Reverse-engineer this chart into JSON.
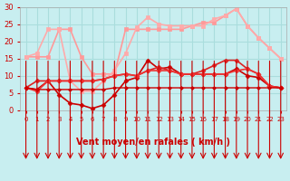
{
  "title": "",
  "xlabel": "Vent moyen/en rafales ( km/h )",
  "ylabel": "",
  "xlim": [
    0,
    23
  ],
  "ylim": [
    0,
    30
  ],
  "yticks": [
    0,
    5,
    10,
    15,
    20,
    25,
    30
  ],
  "xticks": [
    0,
    1,
    2,
    3,
    4,
    5,
    6,
    7,
    8,
    9,
    10,
    11,
    12,
    13,
    14,
    15,
    16,
    17,
    18,
    19,
    20,
    21,
    22,
    23
  ],
  "bg_color": "#c8eef0",
  "grid_color": "#aadddd",
  "series": [
    {
      "name": "light_upper1",
      "x": [
        0,
        1,
        2,
        3,
        4,
        5,
        6,
        7,
        8,
        9,
        10,
        11,
        12,
        13,
        14,
        15,
        16,
        17,
        18,
        19,
        20,
        21,
        22,
        23
      ],
      "y": [
        15.5,
        15.5,
        15.5,
        23.5,
        23.5,
        15.5,
        10.5,
        10.5,
        10.5,
        23.5,
        23.5,
        23.5,
        23.5,
        23.5,
        23.5,
        24.5,
        25.5,
        25.5,
        27.5,
        29.5,
        24.5,
        21.0,
        18.0,
        15.0
      ],
      "color": "#ff9999",
      "linewidth": 1.2,
      "marker": "s",
      "markersize": 2.5
    },
    {
      "name": "light_upper2",
      "x": [
        0,
        1,
        2,
        3,
        4,
        5,
        6,
        7,
        8,
        9,
        10,
        11,
        12,
        13,
        14,
        15,
        16,
        17,
        18,
        19,
        20,
        21,
        22,
        23
      ],
      "y": [
        15.5,
        16.5,
        23.5,
        23.5,
        8.5,
        5.5,
        5.5,
        8.5,
        11.5,
        16.5,
        24.0,
        27.0,
        25.0,
        24.5,
        24.5,
        24.5,
        24.5,
        26.5,
        27.5,
        29.5,
        24.5,
        21.0,
        18.0,
        15.0
      ],
      "color": "#ffaaaa",
      "linewidth": 1.2,
      "marker": "s",
      "markersize": 2.5
    },
    {
      "name": "dark_line1",
      "x": [
        0,
        1,
        2,
        3,
        4,
        5,
        6,
        7,
        8,
        9,
        10,
        11,
        12,
        13,
        14,
        15,
        16,
        17,
        18,
        19,
        20,
        21,
        22,
        23
      ],
      "y": [
        6.5,
        6.0,
        8.5,
        4.5,
        2.0,
        1.5,
        0.5,
        1.5,
        4.5,
        8.5,
        9.5,
        14.5,
        12.0,
        12.5,
        10.5,
        10.5,
        10.5,
        10.5,
        10.5,
        12.0,
        10.0,
        9.5,
        7.0,
        6.5
      ],
      "color": "#cc0000",
      "linewidth": 1.2,
      "marker": "D",
      "markersize": 2.5
    },
    {
      "name": "dark_line2",
      "x": [
        0,
        1,
        2,
        3,
        4,
        5,
        6,
        7,
        8,
        9,
        10,
        11,
        12,
        13,
        14,
        15,
        16,
        17,
        18,
        19,
        20,
        21,
        22,
        23
      ],
      "y": [
        6.5,
        8.5,
        8.5,
        8.5,
        8.5,
        8.5,
        8.5,
        9.0,
        10.0,
        10.5,
        10.0,
        11.5,
        12.5,
        11.5,
        10.5,
        10.5,
        11.5,
        13.0,
        14.5,
        14.5,
        12.0,
        10.5,
        7.0,
        6.5
      ],
      "color": "#dd2222",
      "linewidth": 1.2,
      "marker": "D",
      "markersize": 2.5
    },
    {
      "name": "dark_line3",
      "x": [
        0,
        1,
        2,
        3,
        4,
        5,
        6,
        7,
        8,
        9,
        10,
        11,
        12,
        13,
        14,
        15,
        16,
        17,
        18,
        19,
        20,
        21,
        22,
        23
      ],
      "y": [
        6.5,
        5.5,
        8.5,
        8.5,
        8.5,
        8.5,
        8.5,
        9.0,
        10.0,
        10.5,
        10.0,
        11.5,
        11.5,
        11.5,
        10.5,
        10.5,
        10.5,
        10.5,
        10.5,
        11.5,
        12.0,
        10.5,
        7.0,
        6.5
      ],
      "color": "#ee3333",
      "linewidth": 1.2,
      "marker": "D",
      "markersize": 2.5
    },
    {
      "name": "dark_low",
      "x": [
        0,
        1,
        2,
        3,
        4,
        5,
        6,
        7,
        8,
        9,
        10,
        11,
        12,
        13,
        14,
        15,
        16,
        17,
        18,
        19,
        20,
        21,
        22,
        23
      ],
      "y": [
        6.5,
        6.0,
        6.0,
        6.0,
        6.0,
        6.0,
        6.0,
        6.0,
        6.5,
        6.5,
        6.5,
        6.5,
        6.5,
        6.5,
        6.5,
        6.5,
        6.5,
        6.5,
        6.5,
        6.5,
        6.5,
        6.5,
        6.5,
        6.5
      ],
      "color": "#cc0000",
      "linewidth": 1.0,
      "marker": "D",
      "markersize": 2.0
    }
  ],
  "arrows": {
    "y": -1.5,
    "color": "#cc0000",
    "size": 6
  }
}
